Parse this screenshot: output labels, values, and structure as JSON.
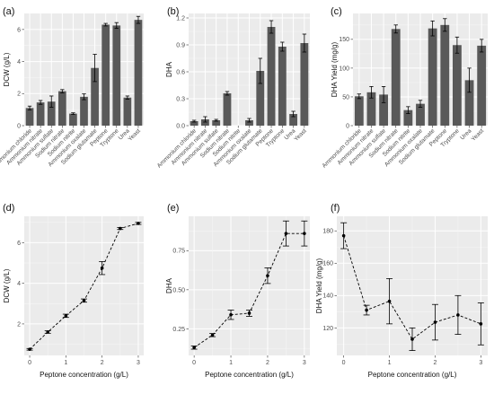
{
  "colors": {
    "panel_background": "#ebebeb",
    "grid_major": "#ffffff",
    "grid_minor": "#f5f5f5",
    "bar_fill": "#595959",
    "error_bar": "#000000",
    "line": "#000000",
    "text": "#333333"
  },
  "chart_data": [
    {
      "panel": "(a)",
      "type": "bar",
      "categories": [
        "Ammonium chloride",
        "Ammonium nitrate",
        "Ammonium sulfate",
        "Sodium nitrate",
        "Sodium nitrite",
        "Ammonium oxalate",
        "Sodium glutamate",
        "Peptone",
        "Tryptone",
        "Urea",
        "Yeast"
      ],
      "values": [
        1.1,
        1.45,
        1.5,
        2.15,
        0.75,
        1.8,
        3.6,
        6.3,
        6.25,
        1.75,
        6.6
      ],
      "errors": [
        0.12,
        0.12,
        0.35,
        0.1,
        0.05,
        0.18,
        0.85,
        0.08,
        0.18,
        0.1,
        0.22
      ],
      "title": "",
      "xlabel": "",
      "ylabel": "DCW (g/L)",
      "ylim": [
        0,
        7
      ],
      "yticks": [
        0,
        2,
        4,
        6
      ],
      "ytick_labels": [
        "0",
        "2",
        "4",
        "6"
      ],
      "grid": true
    },
    {
      "panel": "(b)",
      "type": "bar",
      "categories": [
        "Ammonium chloride",
        "Ammonium nitrate",
        "Ammonium sulfate",
        "Sodium nitrate",
        "Sodium nitrite",
        "Ammonium oxalate",
        "Sodium glutamate",
        "Peptone",
        "Tryptone",
        "Urea",
        "Yeast"
      ],
      "values": [
        0.05,
        0.07,
        0.06,
        0.36,
        0.0,
        0.06,
        0.61,
        1.1,
        0.88,
        0.13,
        0.92
      ],
      "errors": [
        0.01,
        0.03,
        0.01,
        0.02,
        0.0,
        0.02,
        0.14,
        0.07,
        0.05,
        0.03,
        0.1
      ],
      "title": "",
      "xlabel": "",
      "ylabel": "DHA",
      "ylim": [
        0,
        1.25
      ],
      "yticks": [
        0,
        0.3,
        0.6,
        0.9,
        1.2
      ],
      "ytick_labels": [
        "0.0",
        "0.3",
        "0.6",
        "0.9",
        "1.2"
      ],
      "grid": true
    },
    {
      "panel": "(c)",
      "type": "bar",
      "categories": [
        "Ammonium chloride",
        "Ammonium nitrate",
        "Ammonium sulfate",
        "Sodium nitrate",
        "Sodium nitrite",
        "Ammonium oxalate",
        "Sodium glutamate",
        "Peptone",
        "Tryptone",
        "Urea",
        "Yeast"
      ],
      "values": [
        51,
        58,
        54,
        168,
        27,
        38,
        169,
        175,
        140,
        79,
        139
      ],
      "errors": [
        4,
        10,
        14,
        7,
        6,
        6,
        13,
        11,
        14,
        21,
        11
      ],
      "title": "",
      "xlabel": "",
      "ylabel": "DHA Yield (mg/g)",
      "ylim": [
        0,
        195
      ],
      "yticks": [
        0,
        50,
        100,
        150
      ],
      "ytick_labels": [
        "0",
        "50",
        "100",
        "150"
      ],
      "grid": true
    },
    {
      "panel": "(d)",
      "type": "line",
      "x": [
        0,
        0.5,
        1,
        1.5,
        2,
        2.5,
        3
      ],
      "y": [
        0.75,
        1.6,
        2.4,
        3.15,
        4.75,
        6.7,
        6.95
      ],
      "errors": [
        0.04,
        0.06,
        0.08,
        0.08,
        0.32,
        0.05,
        0.05
      ],
      "title": "",
      "xlabel": "Peptone concentration (g/L)",
      "ylabel": "DCW (g/L)",
      "xlim": [
        -0.15,
        3.15
      ],
      "ylim": [
        0.45,
        7.3
      ],
      "xticks": [
        0,
        1,
        2,
        3
      ],
      "xtick_labels": [
        "0",
        "1",
        "2",
        "3"
      ],
      "yticks": [
        2,
        4,
        6
      ],
      "ytick_labels": [
        "2",
        "4",
        "6"
      ],
      "line_style": "dashed",
      "grid": true
    },
    {
      "panel": "(e)",
      "type": "line",
      "x": [
        0,
        0.5,
        1,
        1.5,
        2,
        2.5,
        3
      ],
      "y": [
        0.13,
        0.21,
        0.34,
        0.35,
        0.59,
        0.86,
        0.86
      ],
      "errors": [
        0.01,
        0.01,
        0.03,
        0.02,
        0.05,
        0.08,
        0.08
      ],
      "title": "",
      "xlabel": "Peptone concentration (g/L)",
      "ylabel": "DHA",
      "xlim": [
        -0.15,
        3.15
      ],
      "ylim": [
        0.08,
        0.97
      ],
      "xticks": [
        0,
        1,
        2,
        3
      ],
      "xtick_labels": [
        "0",
        "1",
        "2",
        "3"
      ],
      "yticks": [
        0.25,
        0.5,
        0.75
      ],
      "ytick_labels": [
        "0.25",
        "0.50",
        "0.75"
      ],
      "line_style": "dashed",
      "grid": true
    },
    {
      "panel": "(f)",
      "type": "line",
      "x": [
        0,
        0.5,
        1,
        1.5,
        2,
        2.5,
        3
      ],
      "y": [
        177,
        131,
        136.5,
        113,
        123.5,
        128,
        122.5
      ],
      "errors": [
        8,
        3,
        14,
        7,
        11,
        12,
        13
      ],
      "title": "",
      "xlabel": "Peptone concentration (g/L)",
      "ylabel": "DHA Yield (mg/g)",
      "xlim": [
        -0.15,
        3.15
      ],
      "ylim": [
        103,
        189
      ],
      "xticks": [
        0,
        1,
        2,
        3
      ],
      "xtick_labels": [
        "0",
        "1",
        "2",
        "3"
      ],
      "yticks": [
        120,
        140,
        160,
        180
      ],
      "ytick_labels": [
        "120",
        "140",
        "160",
        "180"
      ],
      "line_style": "dashed",
      "grid": true
    }
  ]
}
